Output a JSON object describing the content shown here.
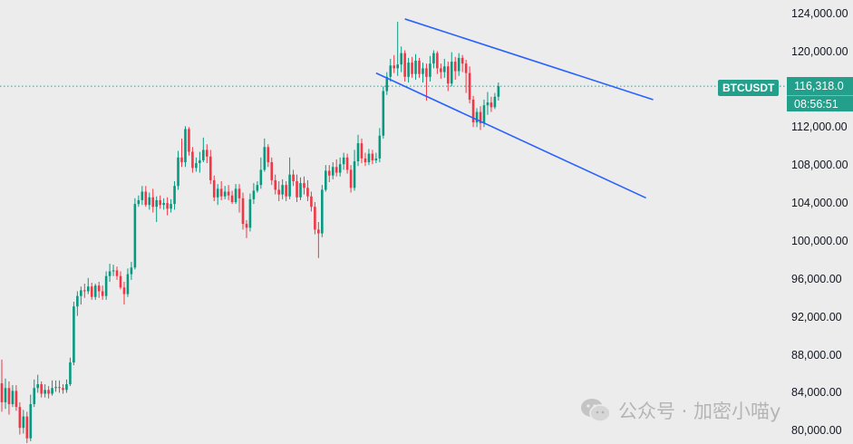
{
  "chart_data": {
    "type": "candlestick",
    "symbol": "BTCUSDT",
    "last_price": "116,318.0",
    "countdown": "08:56:51",
    "ylim": [
      78600,
      125400
    ],
    "y_ticks": [
      {
        "value": 124000,
        "label": "124,000.00"
      },
      {
        "value": 120000,
        "label": "120,000.00"
      },
      {
        "value": 112000,
        "label": "112,000.00"
      },
      {
        "value": 108000,
        "label": "108,000.00"
      },
      {
        "value": 104000,
        "label": "104,000.00"
      },
      {
        "value": 100000,
        "label": "100,000.00"
      },
      {
        "value": 96000,
        "label": "96,000.00"
      },
      {
        "value": 92000,
        "label": "92,000.00"
      },
      {
        "value": 88000,
        "label": "88,000.00"
      },
      {
        "value": 84000,
        "label": "84,000.00"
      },
      {
        "value": 80000,
        "label": "80,000.00"
      }
    ],
    "current_price_value": 116318,
    "colors": {
      "up": "#089981",
      "down": "#f23645",
      "channel": "#2962ff",
      "price_line": "#22a08c"
    },
    "candles": [
      [
        85000,
        83000,
        87500,
        82000
      ],
      [
        83000,
        84500,
        85500,
        82300
      ],
      [
        84500,
        82800,
        85200,
        81700
      ],
      [
        82800,
        84200,
        84800,
        82500
      ],
      [
        84200,
        82500,
        84800,
        82100
      ],
      [
        82500,
        80300,
        83000,
        79600
      ],
      [
        80300,
        81500,
        82200,
        79700
      ],
      [
        81500,
        79200,
        82000,
        78700
      ],
      [
        79200,
        82800,
        83800,
        78900
      ],
      [
        82800,
        84500,
        85400,
        82500
      ],
      [
        84500,
        84900,
        85900,
        84000
      ],
      [
        84900,
        83900,
        85200,
        83500
      ],
      [
        83900,
        84300,
        84900,
        83500
      ],
      [
        84300,
        83900,
        84700,
        83400
      ],
      [
        83900,
        84500,
        85300,
        83700
      ],
      [
        84500,
        84600,
        85300,
        84100
      ],
      [
        84600,
        84500,
        85300,
        84000
      ],
      [
        84500,
        84300,
        84900,
        83900
      ],
      [
        84300,
        84900,
        85400,
        84000
      ],
      [
        84900,
        87200,
        87700,
        84700
      ],
      [
        87200,
        93100,
        93600,
        86900
      ],
      [
        93100,
        94200,
        94700,
        92100
      ],
      [
        94200,
        94800,
        95200,
        93300
      ],
      [
        94800,
        94700,
        95500,
        94000
      ],
      [
        94700,
        95200,
        96100,
        94400
      ],
      [
        95200,
        94100,
        95600,
        93800
      ],
      [
        94100,
        95300,
        95500,
        93800
      ],
      [
        95300,
        94700,
        95700,
        94000
      ],
      [
        94700,
        94200,
        95300,
        93800
      ],
      [
        94200,
        96300,
        96800,
        93800
      ],
      [
        96300,
        96800,
        97600,
        95700
      ],
      [
        96800,
        96900,
        97500,
        96300
      ],
      [
        96900,
        96300,
        97300,
        95900
      ],
      [
        96300,
        95100,
        96800,
        94900
      ],
      [
        95100,
        94400,
        95700,
        93300
      ],
      [
        94400,
        96500,
        97100,
        94100
      ],
      [
        96500,
        97200,
        97800,
        95900
      ],
      [
        97200,
        103900,
        104500,
        97000
      ],
      [
        103900,
        104300,
        104800,
        103600
      ],
      [
        104300,
        105200,
        105800,
        103800
      ],
      [
        105200,
        103800,
        105800,
        103600
      ],
      [
        103800,
        104600,
        105100,
        103300
      ],
      [
        104600,
        103600,
        105500,
        103000
      ],
      [
        103600,
        104300,
        104700,
        102000
      ],
      [
        104300,
        103800,
        104800,
        103400
      ],
      [
        103800,
        104000,
        104500,
        103300
      ],
      [
        104000,
        103400,
        104600,
        102700
      ],
      [
        103400,
        103900,
        104400,
        103000
      ],
      [
        103900,
        105800,
        106300,
        103300
      ],
      [
        105800,
        108800,
        109500,
        105400
      ],
      [
        108800,
        108300,
        110800,
        107800
      ],
      [
        108300,
        111800,
        112100,
        107800
      ],
      [
        111800,
        109400,
        112000,
        109000
      ],
      [
        109400,
        107700,
        109900,
        107200
      ],
      [
        107700,
        108200,
        108800,
        107300
      ],
      [
        108200,
        108500,
        109400,
        107200
      ],
      [
        108500,
        109600,
        110900,
        108300
      ],
      [
        109600,
        108900,
        110200,
        108200
      ],
      [
        108900,
        106400,
        109600,
        106000
      ],
      [
        106400,
        104600,
        106900,
        104200
      ],
      [
        104600,
        105500,
        106000,
        103800
      ],
      [
        105500,
        104700,
        106300,
        104300
      ],
      [
        104700,
        105200,
        105800,
        104400
      ],
      [
        105200,
        104800,
        105900,
        104300
      ],
      [
        104800,
        104100,
        105300,
        103900
      ],
      [
        104100,
        105500,
        106000,
        103900
      ],
      [
        105500,
        104500,
        106000,
        103000
      ],
      [
        104500,
        101800,
        105100,
        101200
      ],
      [
        101800,
        101400,
        102200,
        100300
      ],
      [
        101400,
        104400,
        105000,
        101000
      ],
      [
        104400,
        105300,
        106100,
        103900
      ],
      [
        105300,
        105900,
        106300,
        105100
      ],
      [
        105900,
        107500,
        108800,
        105500
      ],
      [
        107500,
        109900,
        110800,
        107300
      ],
      [
        109900,
        108300,
        110200,
        107800
      ],
      [
        108300,
        106400,
        108800,
        105900
      ],
      [
        106400,
        105400,
        107000,
        104900
      ],
      [
        105400,
        104900,
        106300,
        104200
      ],
      [
        104900,
        105900,
        106500,
        104400
      ],
      [
        105900,
        104700,
        106300,
        104200
      ],
      [
        104700,
        107000,
        108800,
        104400
      ],
      [
        107000,
        106300,
        107500,
        105800
      ],
      [
        106300,
        104600,
        107000,
        104100
      ],
      [
        104600,
        106100,
        106700,
        104300
      ],
      [
        106100,
        105600,
        106800,
        104900
      ],
      [
        105600,
        104700,
        106400,
        104200
      ],
      [
        104700,
        103600,
        105200,
        103100
      ],
      [
        103600,
        101200,
        104100,
        100700
      ],
      [
        101200,
        100800,
        102000,
        98200
      ],
      [
        100800,
        105400,
        105900,
        100400
      ],
      [
        105400,
        107400,
        108000,
        105200
      ],
      [
        107400,
        106900,
        108000,
        106200
      ],
      [
        106900,
        107800,
        108300,
        106500
      ],
      [
        107800,
        107200,
        108600,
        106800
      ],
      [
        107200,
        108100,
        108800,
        106800
      ],
      [
        108100,
        108800,
        109300,
        107500
      ],
      [
        108800,
        107500,
        109200,
        107100
      ],
      [
        107500,
        105600,
        108000,
        105100
      ],
      [
        105600,
        108400,
        109600,
        105300
      ],
      [
        108400,
        110300,
        111200,
        107900
      ],
      [
        110300,
        108700,
        110800,
        108200
      ],
      [
        108700,
        108300,
        109300,
        107900
      ],
      [
        108300,
        109200,
        109700,
        108000
      ],
      [
        109200,
        108500,
        109600,
        108100
      ],
      [
        108500,
        108700,
        109300,
        108200
      ],
      [
        108700,
        111100,
        111900,
        108300
      ],
      [
        111100,
        115800,
        116300,
        110800
      ],
      [
        115800,
        117300,
        117800,
        115400
      ],
      [
        117300,
        118500,
        119200,
        116800
      ],
      [
        118500,
        118200,
        119600,
        117700
      ],
      [
        118200,
        118600,
        123100,
        117400
      ],
      [
        118600,
        119800,
        120500,
        117800
      ],
      [
        119800,
        117300,
        120100,
        116800
      ],
      [
        117300,
        118800,
        119300,
        116700
      ],
      [
        118800,
        117600,
        119400,
        117200
      ],
      [
        117600,
        119000,
        119700,
        117000
      ],
      [
        119000,
        117600,
        119300,
        117200
      ],
      [
        117600,
        118200,
        118800,
        116700
      ],
      [
        118200,
        117300,
        118700,
        114800
      ],
      [
        117300,
        118700,
        119500,
        116800
      ],
      [
        118700,
        119800,
        120100,
        118200
      ],
      [
        119800,
        118200,
        120000,
        117600
      ],
      [
        118200,
        117800,
        118700,
        117100
      ],
      [
        117800,
        118400,
        119200,
        117200
      ],
      [
        118400,
        116600,
        118900,
        115800
      ],
      [
        116600,
        118900,
        119900,
        116300
      ],
      [
        118900,
        117900,
        119400,
        117000
      ],
      [
        117900,
        119300,
        119800,
        117400
      ],
      [
        119300,
        118700,
        119600,
        117800
      ],
      [
        118700,
        117700,
        119100,
        115600
      ],
      [
        117700,
        114900,
        118400,
        114500
      ],
      [
        114900,
        112500,
        115300,
        112000
      ],
      [
        112500,
        113600,
        114000,
        112000
      ],
      [
        113600,
        112400,
        114200,
        111700
      ],
      [
        112400,
        114300,
        114900,
        112000
      ],
      [
        114300,
        114600,
        115700,
        113300
      ],
      [
        114600,
        114100,
        115200,
        113600
      ],
      [
        114100,
        115200,
        115600,
        113900
      ],
      [
        115200,
        116318,
        116700,
        114800
      ]
    ],
    "channel_upper": [
      [
        112,
        123400
      ],
      [
        155,
        118100
      ]
    ],
    "channel_lower": [
      [
        104,
        117700
      ],
      [
        153,
        109100
      ]
    ]
  },
  "watermark": {
    "text": "公众号 · 加密小喵y",
    "icon": "wechat-icon"
  }
}
